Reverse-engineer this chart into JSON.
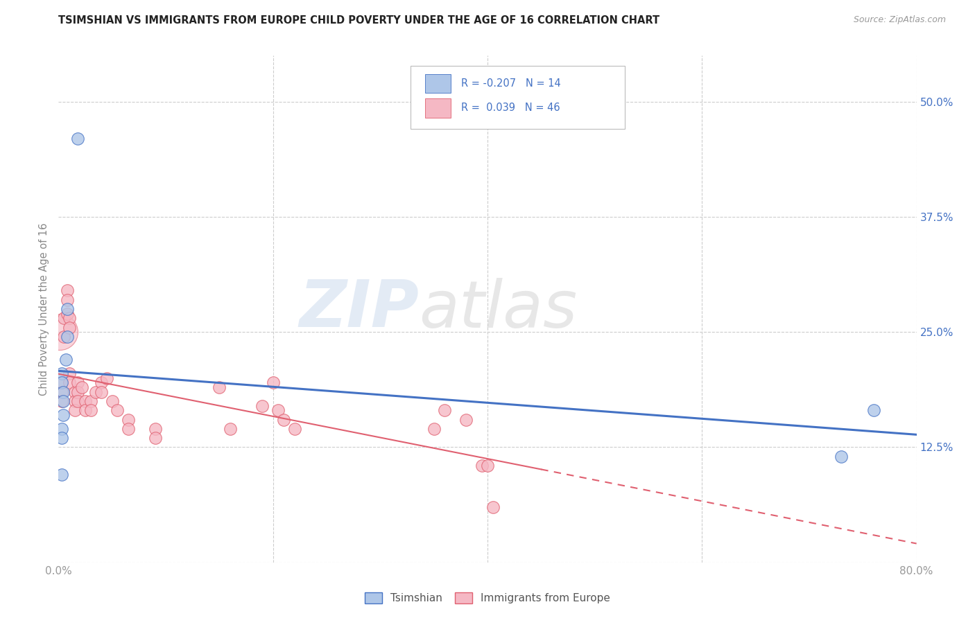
{
  "title": "TSIMSHIAN VS IMMIGRANTS FROM EUROPE CHILD POVERTY UNDER THE AGE OF 16 CORRELATION CHART",
  "source": "Source: ZipAtlas.com",
  "ylabel": "Child Poverty Under the Age of 16",
  "xlim": [
    0.0,
    0.8
  ],
  "ylim": [
    0.0,
    0.55
  ],
  "xticks": [
    0.0,
    0.2,
    0.4,
    0.6,
    0.8
  ],
  "xticklabels": [
    "0.0%",
    "",
    "",
    "",
    "80.0%"
  ],
  "yticks": [
    0.0,
    0.125,
    0.25,
    0.375,
    0.5
  ],
  "grid_color": "#cccccc",
  "background_color": "#ffffff",
  "watermark_zip": "ZIP",
  "watermark_atlas": "atlas",
  "legend_R1": "-0.207",
  "legend_N1": "14",
  "legend_R2": "0.039",
  "legend_N2": "46",
  "blue_fill": "#aec6e8",
  "blue_edge": "#4472c4",
  "pink_fill": "#f5b8c4",
  "pink_edge": "#e06070",
  "blue_line_color": "#4472c4",
  "pink_line_color": "#e06070",
  "tsimshian_x": [
    0.018,
    0.008,
    0.008,
    0.007,
    0.003,
    0.003,
    0.004,
    0.004,
    0.004,
    0.003,
    0.003,
    0.003,
    0.76,
    0.73
  ],
  "tsimshian_y": [
    0.46,
    0.275,
    0.245,
    0.22,
    0.205,
    0.195,
    0.185,
    0.175,
    0.16,
    0.145,
    0.135,
    0.095,
    0.165,
    0.115
  ],
  "europe_x": [
    0.003,
    0.003,
    0.003,
    0.005,
    0.005,
    0.008,
    0.008,
    0.008,
    0.01,
    0.01,
    0.01,
    0.01,
    0.015,
    0.015,
    0.015,
    0.018,
    0.018,
    0.018,
    0.022,
    0.025,
    0.025,
    0.03,
    0.03,
    0.035,
    0.04,
    0.04,
    0.045,
    0.05,
    0.055,
    0.065,
    0.065,
    0.09,
    0.09,
    0.15,
    0.16,
    0.19,
    0.2,
    0.205,
    0.21,
    0.22,
    0.35,
    0.36,
    0.38,
    0.395,
    0.4,
    0.405
  ],
  "europe_y": [
    0.195,
    0.185,
    0.175,
    0.265,
    0.245,
    0.295,
    0.285,
    0.27,
    0.265,
    0.255,
    0.205,
    0.195,
    0.185,
    0.175,
    0.165,
    0.195,
    0.185,
    0.175,
    0.19,
    0.175,
    0.165,
    0.175,
    0.165,
    0.185,
    0.195,
    0.185,
    0.2,
    0.175,
    0.165,
    0.155,
    0.145,
    0.145,
    0.135,
    0.19,
    0.145,
    0.17,
    0.195,
    0.165,
    0.155,
    0.145,
    0.145,
    0.165,
    0.155,
    0.105,
    0.105,
    0.06
  ],
  "pink_line_solid_end": 0.45,
  "marker_size": 160
}
